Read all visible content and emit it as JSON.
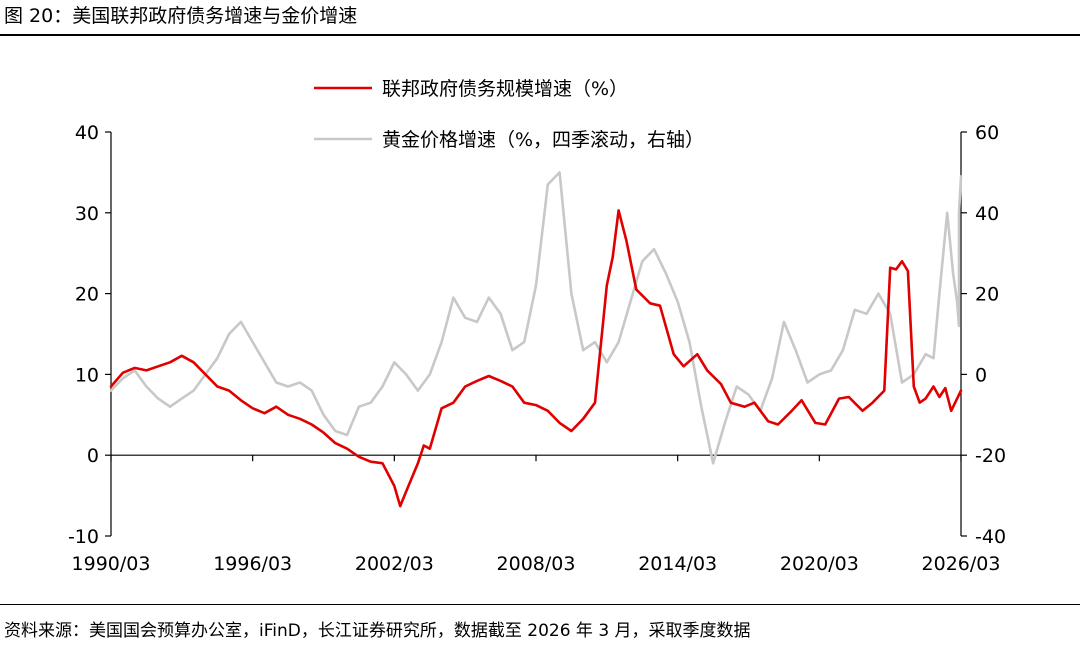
{
  "header": {
    "title": "图 20：美国联邦政府债务增速与金价增速"
  },
  "footer": {
    "source": "资料来源：美国国会预算办公室，iFinD，长江证券研究所，数据截至 2026 年 3 月，采取季度数据"
  },
  "chart_data": {
    "type": "line",
    "x_ticks": [
      "1990/03",
      "1996/03",
      "2002/03",
      "2008/03",
      "2014/03",
      "2020/03",
      "2026/03"
    ],
    "x_range": [
      "1990/03",
      "2026/03"
    ],
    "y_left": {
      "range": [
        -10,
        40
      ],
      "ticks": [
        "-10",
        "0",
        "10",
        "20",
        "30",
        "40"
      ]
    },
    "y_right": {
      "range": [
        -40,
        60
      ],
      "ticks": [
        "-40",
        "-20",
        "0",
        "20",
        "40",
        "60"
      ]
    },
    "grid": false,
    "legend_position": "top",
    "series": [
      {
        "name": "联邦政府债务规模增速（%）",
        "axis": "left",
        "color": "#e00000",
        "points": [
          [
            "1990/03",
            8.5
          ],
          [
            "1990/09",
            10.2
          ],
          [
            "1991/03",
            10.8
          ],
          [
            "1991/09",
            10.5
          ],
          [
            "1992/03",
            11.0
          ],
          [
            "1992/09",
            11.5
          ],
          [
            "1993/03",
            12.3
          ],
          [
            "1993/09",
            11.5
          ],
          [
            "1994/03",
            10.0
          ],
          [
            "1994/09",
            8.5
          ],
          [
            "1995/03",
            8.0
          ],
          [
            "1995/09",
            6.8
          ],
          [
            "1996/03",
            5.8
          ],
          [
            "1996/09",
            5.2
          ],
          [
            "1997/03",
            6.0
          ],
          [
            "1997/09",
            5.0
          ],
          [
            "1998/03",
            4.5
          ],
          [
            "1998/09",
            3.8
          ],
          [
            "1999/03",
            2.8
          ],
          [
            "1999/09",
            1.5
          ],
          [
            "2000/03",
            0.8
          ],
          [
            "2000/09",
            -0.2
          ],
          [
            "2001/03",
            -0.8
          ],
          [
            "2001/09",
            -1.0
          ],
          [
            "2002/03",
            -3.8
          ],
          [
            "2002/06",
            -6.3
          ],
          [
            "2002/09",
            -4.5
          ],
          [
            "2003/03",
            -1.0
          ],
          [
            "2003/06",
            1.2
          ],
          [
            "2003/09",
            0.8
          ],
          [
            "2004/03",
            5.8
          ],
          [
            "2004/09",
            6.5
          ],
          [
            "2005/03",
            8.5
          ],
          [
            "2005/09",
            9.2
          ],
          [
            "2006/03",
            9.8
          ],
          [
            "2006/09",
            9.2
          ],
          [
            "2007/03",
            8.5
          ],
          [
            "2007/09",
            6.5
          ],
          [
            "2008/03",
            6.2
          ],
          [
            "2008/09",
            5.5
          ],
          [
            "2009/03",
            4.0
          ],
          [
            "2009/09",
            3.0
          ],
          [
            "2010/03",
            4.5
          ],
          [
            "2010/09",
            6.5
          ],
          [
            "2011/03",
            21.0
          ],
          [
            "2011/06",
            24.5
          ],
          [
            "2011/09",
            30.3
          ],
          [
            "2012/01",
            26.5
          ],
          [
            "2012/06",
            20.5
          ],
          [
            "2013/01",
            18.8
          ],
          [
            "2013/06",
            18.5
          ],
          [
            "2014/01",
            12.5
          ],
          [
            "2014/06",
            11.0
          ],
          [
            "2015/01",
            12.5
          ],
          [
            "2015/06",
            10.5
          ],
          [
            "2016/01",
            8.8
          ],
          [
            "2016/06",
            6.5
          ],
          [
            "2017/01",
            6.0
          ],
          [
            "2017/06",
            6.5
          ],
          [
            "2018/01",
            4.2
          ],
          [
            "2018/06",
            3.8
          ],
          [
            "2019/01",
            5.5
          ],
          [
            "2019/06",
            6.8
          ],
          [
            "2020/01",
            4.0
          ],
          [
            "2020/06",
            3.8
          ],
          [
            "2021/01",
            7.0
          ],
          [
            "2021/06",
            7.2
          ],
          [
            "2022/01",
            5.5
          ],
          [
            "2022/06",
            6.5
          ],
          [
            "2022/12",
            8.0
          ],
          [
            "2023/03",
            23.2
          ],
          [
            "2023/06",
            23.0
          ],
          [
            "2023/09",
            24.0
          ],
          [
            "2023/12",
            22.8
          ],
          [
            "2024/03",
            8.5
          ],
          [
            "2024/06",
            6.5
          ],
          [
            "2024/09",
            7.0
          ],
          [
            "2025/01",
            8.5
          ],
          [
            "2025/04",
            7.2
          ],
          [
            "2025/07",
            8.3
          ],
          [
            "2025/10",
            5.5
          ],
          [
            "2026/03",
            8.0
          ]
        ]
      },
      {
        "name": "黄金价格增速（%，四季滚动，右轴）",
        "axis": "right",
        "color": "#c8c8c8",
        "points": [
          [
            "1990/03",
            -4.0
          ],
          [
            "1990/09",
            -1.0
          ],
          [
            "1991/03",
            1.0
          ],
          [
            "1991/09",
            -3.0
          ],
          [
            "1992/03",
            -6.0
          ],
          [
            "1992/09",
            -8.0
          ],
          [
            "1993/03",
            -6.0
          ],
          [
            "1993/09",
            -4.0
          ],
          [
            "1994/03",
            0.0
          ],
          [
            "1994/09",
            4.0
          ],
          [
            "1995/03",
            10.0
          ],
          [
            "1995/09",
            13.0
          ],
          [
            "1996/03",
            8.0
          ],
          [
            "1996/09",
            3.0
          ],
          [
            "1997/03",
            -2.0
          ],
          [
            "1997/09",
            -3.0
          ],
          [
            "1998/03",
            -2.0
          ],
          [
            "1998/09",
            -4.0
          ],
          [
            "1999/03",
            -10.0
          ],
          [
            "1999/09",
            -14.0
          ],
          [
            "2000/03",
            -15.0
          ],
          [
            "2000/09",
            -8.0
          ],
          [
            "2001/03",
            -7.0
          ],
          [
            "2001/09",
            -3.0
          ],
          [
            "2002/03",
            3.0
          ],
          [
            "2002/09",
            0.0
          ],
          [
            "2003/03",
            -4.0
          ],
          [
            "2003/09",
            0.0
          ],
          [
            "2004/03",
            8.0
          ],
          [
            "2004/09",
            19.0
          ],
          [
            "2005/03",
            14.0
          ],
          [
            "2005/09",
            13.0
          ],
          [
            "2006/03",
            19.0
          ],
          [
            "2006/09",
            15.0
          ],
          [
            "2007/03",
            6.0
          ],
          [
            "2007/09",
            8.0
          ],
          [
            "2008/03",
            22.0
          ],
          [
            "2008/09",
            47.0
          ],
          [
            "2009/03",
            50.0
          ],
          [
            "2009/09",
            20.0
          ],
          [
            "2010/03",
            6.0
          ],
          [
            "2010/09",
            8.0
          ],
          [
            "2011/03",
            3.0
          ],
          [
            "2011/09",
            8.0
          ],
          [
            "2012/03",
            18.0
          ],
          [
            "2012/09",
            28.0
          ],
          [
            "2013/03",
            31.0
          ],
          [
            "2013/09",
            25.0
          ],
          [
            "2014/03",
            18.0
          ],
          [
            "2014/09",
            8.0
          ],
          [
            "2015/03",
            -8.0
          ],
          [
            "2015/09",
            -22.0
          ],
          [
            "2016/03",
            -12.0
          ],
          [
            "2016/09",
            -3.0
          ],
          [
            "2017/03",
            -5.0
          ],
          [
            "2017/09",
            -9.0
          ],
          [
            "2018/03",
            -1.0
          ],
          [
            "2018/09",
            13.0
          ],
          [
            "2019/03",
            6.0
          ],
          [
            "2019/09",
            -2.0
          ],
          [
            "2020/03",
            0.0
          ],
          [
            "2020/09",
            1.0
          ],
          [
            "2021/03",
            6.0
          ],
          [
            "2021/09",
            16.0
          ],
          [
            "2022/03",
            15.0
          ],
          [
            "2022/09",
            20.0
          ],
          [
            "2023/03",
            15.0
          ],
          [
            "2023/09",
            -2.0
          ],
          [
            "2024/03",
            0.0
          ],
          [
            "2024/09",
            5.0
          ],
          [
            "2025/01",
            4.0
          ],
          [
            "2025/04",
            20.0
          ],
          [
            "2025/08",
            40.0
          ],
          [
            "2025/11",
            25.0
          ],
          [
            "2026/01",
            18.0
          ],
          [
            "2026/02",
            12.0
          ],
          [
            "2026/02",
            40.0
          ],
          [
            "2026/03",
            49.0
          ]
        ]
      }
    ]
  }
}
